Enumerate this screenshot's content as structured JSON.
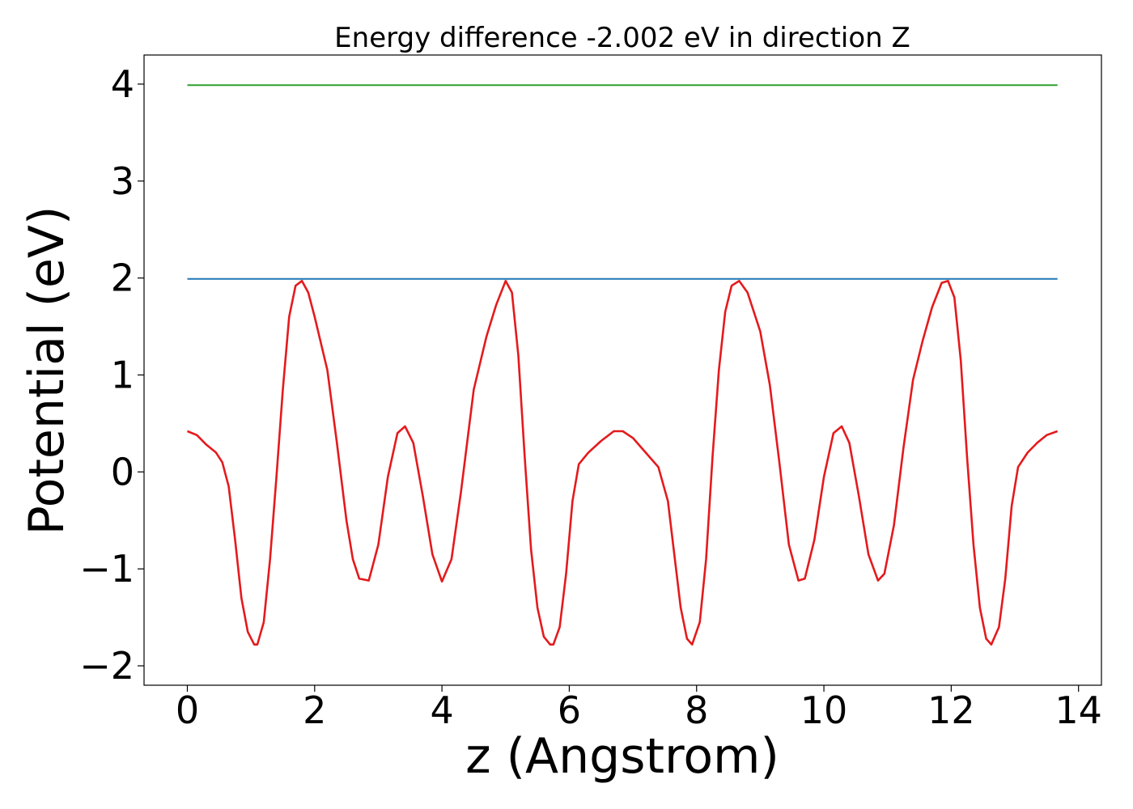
{
  "chart_data": {
    "type": "line",
    "title": "Energy difference -2.002 eV in direction Z",
    "xlabel": "z (Angstrom)",
    "ylabel": "Potential (eV)",
    "xlim": [
      -0.68,
      14.36
    ],
    "ylim": [
      -2.2,
      4.3
    ],
    "xticks": [
      0,
      2,
      4,
      6,
      8,
      10,
      12,
      14
    ],
    "xtick_labels": [
      "0",
      "2",
      "4",
      "6",
      "8",
      "10",
      "12",
      "14"
    ],
    "yticks": [
      -2,
      -1,
      0,
      1,
      2,
      3,
      4
    ],
    "ytick_labels": [
      "−2",
      "−1",
      "0",
      "1",
      "2",
      "3",
      "4"
    ],
    "grid": false,
    "series": [
      {
        "color": "#2ca02c",
        "x": [
          0,
          13.67
        ],
        "y": [
          3.99,
          3.99
        ]
      },
      {
        "color": "#1f77b4",
        "x": [
          0,
          13.67
        ],
        "y": [
          1.99,
          1.99
        ]
      },
      {
        "color": "#e41a1c",
        "x": [
          0,
          0.15,
          0.3,
          0.45,
          0.55,
          0.65,
          0.75,
          0.85,
          0.95,
          1.05,
          1.1,
          1.2,
          1.3,
          1.4,
          1.5,
          1.6,
          1.7,
          1.8,
          1.9,
          2.0,
          2.2,
          2.35,
          2.5,
          2.6,
          2.7,
          2.85,
          3.0,
          3.15,
          3.3,
          3.42,
          3.55,
          3.7,
          3.85,
          4.0,
          4.15,
          4.3,
          4.5,
          4.7,
          4.85,
          5.0,
          5.1,
          5.2,
          5.3,
          5.4,
          5.5,
          5.6,
          5.7,
          5.75,
          5.85,
          5.95,
          6.05,
          6.15,
          6.3,
          6.5,
          6.7,
          6.84,
          7.0,
          7.2,
          7.4,
          7.55,
          7.65,
          7.75,
          7.85,
          7.93,
          8.05,
          8.15,
          8.25,
          8.35,
          8.45,
          8.55,
          8.67,
          8.8,
          9.0,
          9.15,
          9.3,
          9.45,
          9.6,
          9.7,
          9.85,
          10.0,
          10.15,
          10.28,
          10.4,
          10.55,
          10.7,
          10.85,
          10.95,
          11.1,
          11.25,
          11.4,
          11.55,
          11.7,
          11.85,
          11.95,
          12.05,
          12.15,
          12.25,
          12.35,
          12.45,
          12.55,
          12.63,
          12.75,
          12.85,
          12.95,
          13.05,
          13.2,
          13.35,
          13.5,
          13.67
        ],
        "y": [
          0.42,
          0.38,
          0.28,
          0.2,
          0.1,
          -0.15,
          -0.7,
          -1.3,
          -1.65,
          -1.78,
          -1.78,
          -1.55,
          -0.9,
          -0.05,
          0.85,
          1.6,
          1.92,
          1.97,
          1.85,
          1.6,
          1.05,
          0.3,
          -0.5,
          -0.9,
          -1.1,
          -1.12,
          -0.75,
          -0.05,
          0.4,
          0.47,
          0.3,
          -0.25,
          -0.85,
          -1.13,
          -0.9,
          -0.2,
          0.85,
          1.4,
          1.72,
          1.97,
          1.85,
          1.2,
          0.15,
          -0.8,
          -1.4,
          -1.7,
          -1.78,
          -1.78,
          -1.6,
          -1.05,
          -0.3,
          0.08,
          0.2,
          0.32,
          0.42,
          0.42,
          0.35,
          0.2,
          0.05,
          -0.3,
          -0.85,
          -1.4,
          -1.72,
          -1.78,
          -1.55,
          -0.9,
          0.15,
          1.05,
          1.65,
          1.92,
          1.97,
          1.85,
          1.45,
          0.9,
          0.1,
          -0.75,
          -1.12,
          -1.1,
          -0.7,
          -0.05,
          0.4,
          0.47,
          0.3,
          -0.25,
          -0.85,
          -1.12,
          -1.05,
          -0.55,
          0.25,
          0.95,
          1.35,
          1.7,
          1.95,
          1.97,
          1.8,
          1.15,
          0.15,
          -0.75,
          -1.4,
          -1.72,
          -1.78,
          -1.6,
          -1.1,
          -0.35,
          0.05,
          0.2,
          0.3,
          0.38,
          0.42
        ]
      }
    ]
  }
}
